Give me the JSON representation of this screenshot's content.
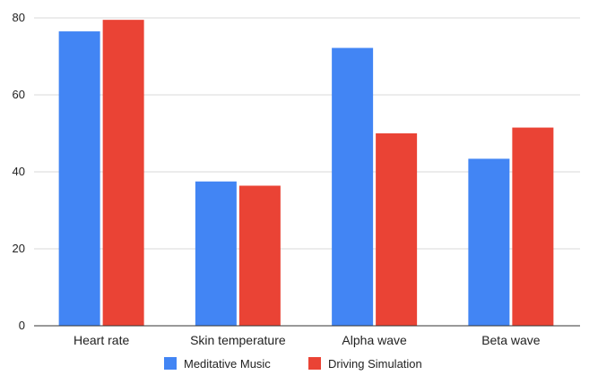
{
  "chart_data": {
    "type": "bar",
    "categories": [
      "Heart rate",
      "Skin temperature",
      "Alpha wave",
      "Beta wave"
    ],
    "series": [
      {
        "name": "Meditative Music",
        "values": [
          76.5,
          37.5,
          72.2,
          43.4
        ],
        "color": "#4285f4"
      },
      {
        "name": "Driving Simulation",
        "values": [
          79.5,
          36.4,
          50.0,
          51.5
        ],
        "color": "#ea4335"
      }
    ],
    "yticks": [
      0,
      20,
      40,
      60,
      80
    ],
    "ylim": [
      0,
      80
    ],
    "grid": true,
    "legend": "bottom-center"
  }
}
